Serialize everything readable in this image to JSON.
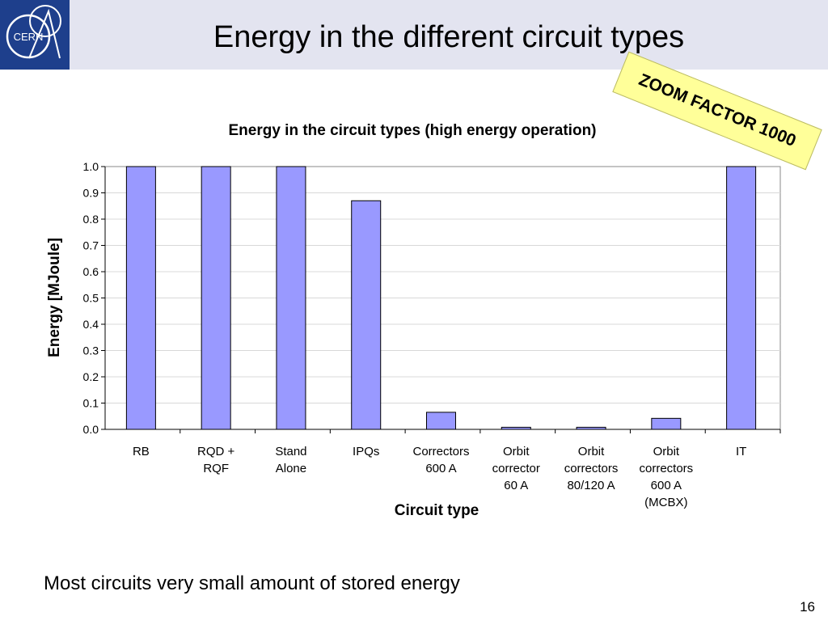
{
  "slide": {
    "title": "Energy in the different circuit types",
    "footnote": "Most circuits very small amount of stored energy",
    "page_number": "16"
  },
  "logo": {
    "text": "CERN"
  },
  "zoom_note": "ZOOM FACTOR 1000",
  "colors": {
    "header_bg": "#e3e4f0",
    "logo_bg": "#1e3f8c",
    "bar": "#9999ff",
    "note_bg": "#ffff99"
  },
  "chart_data": {
    "type": "bar",
    "title": "Energy in the circuit types (high energy operation)",
    "xlabel": "Circuit type",
    "ylabel": "Energy [MJoule]",
    "ylim": [
      0,
      1.0
    ],
    "yticks": [
      "0.0",
      "0.1",
      "0.2",
      "0.3",
      "0.4",
      "0.5",
      "0.6",
      "0.7",
      "0.8",
      "0.9",
      "1.0"
    ],
    "grid": true,
    "categories": [
      [
        "RB"
      ],
      [
        "RQD +",
        "RQF"
      ],
      [
        "Stand",
        "Alone"
      ],
      [
        "IPQs"
      ],
      [
        "Correctors",
        "600 A"
      ],
      [
        "Orbit",
        "corrector",
        "60 A"
      ],
      [
        "Orbit",
        "correctors",
        "80/120 A"
      ],
      [
        "Orbit",
        "correctors",
        "600 A",
        "(MCBX)"
      ],
      [
        "IT"
      ]
    ],
    "values": [
      1.0,
      1.0,
      1.0,
      0.87,
      0.065,
      0.008,
      0.008,
      0.042,
      1.0
    ]
  }
}
